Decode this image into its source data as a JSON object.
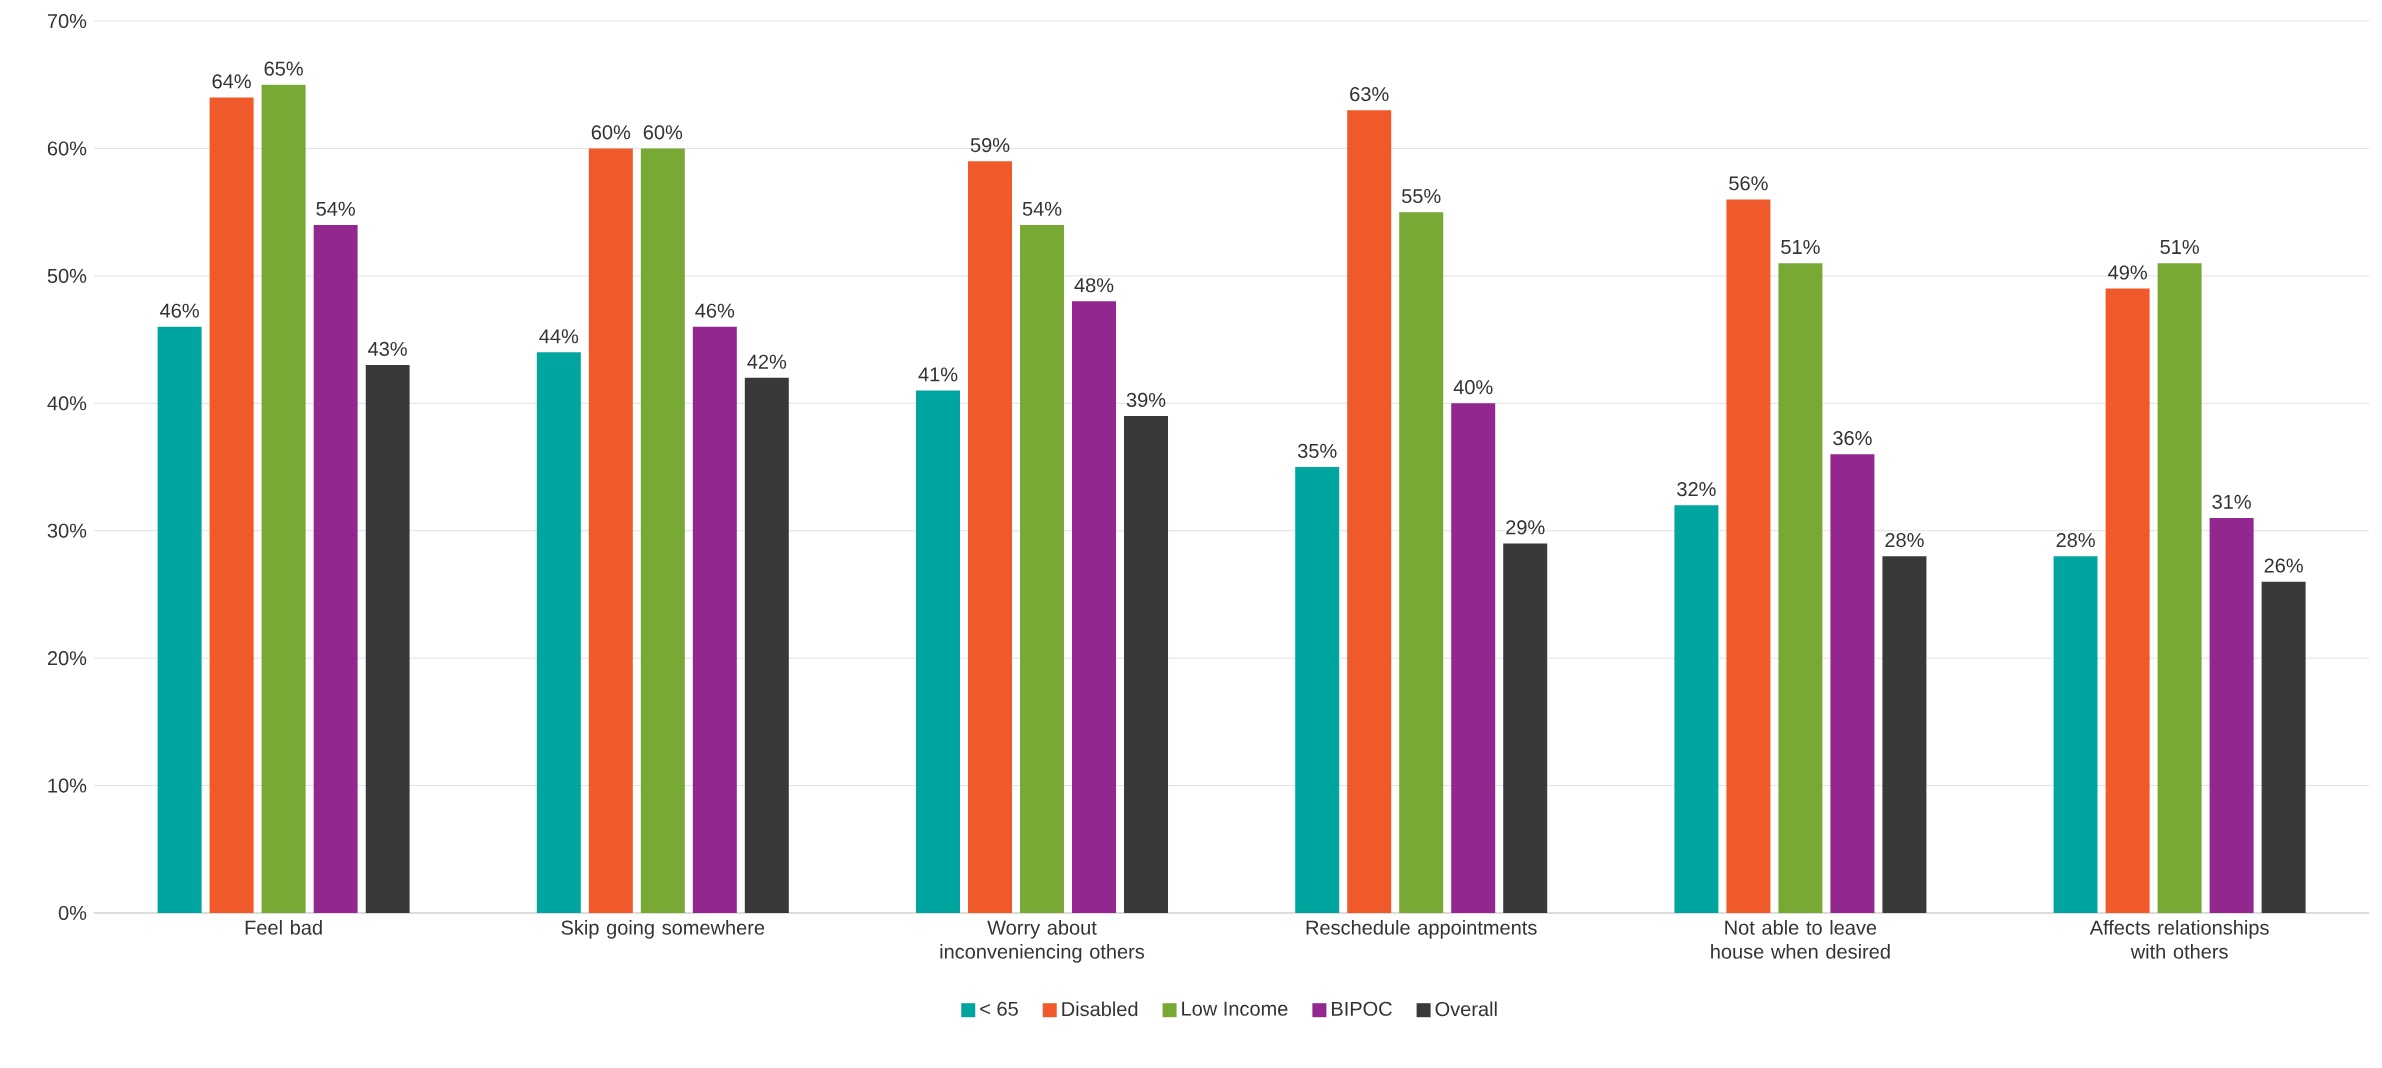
{
  "chart_data": {
    "type": "bar",
    "categories": [
      "Feel bad",
      "Skip going somewhere",
      "Worry about inconveniencing others",
      "Reschedule appointments",
      "Not able to leave house when desired",
      "Affects relationships with others"
    ],
    "series": [
      {
        "name": "< 65",
        "color": "#00a59f",
        "values": [
          46,
          44,
          41,
          35,
          32,
          28
        ],
        "value_labels": [
          "46%",
          "44%",
          "41%",
          "35%",
          "32%",
          "28%"
        ]
      },
      {
        "name": "Disabled",
        "color": "#f05a2a",
        "values": [
          64,
          60,
          59,
          63,
          56,
          49
        ],
        "value_labels": [
          "64%",
          "60%",
          "59%",
          "63%",
          "56%",
          "49%"
        ]
      },
      {
        "name": "Low Income",
        "color": "#77a934",
        "values": [
          65,
          60,
          54,
          55,
          51,
          51
        ],
        "value_labels": [
          "65%",
          "60%",
          "54%",
          "55%",
          "51%",
          "51%"
        ]
      },
      {
        "name": "BIPOC",
        "color": "#92278f",
        "values": [
          54,
          46,
          48,
          40,
          36,
          31
        ],
        "value_labels": [
          "54%",
          "46%",
          "48%",
          "40%",
          "36%",
          "31%"
        ]
      },
      {
        "name": "Overall",
        "color": "#393939",
        "values": [
          43,
          42,
          39,
          29,
          28,
          26
        ],
        "value_labels": [
          "43%",
          "42%",
          "39%",
          "29%",
          "28%",
          "26%"
        ]
      }
    ],
    "ylim": [
      0,
      70
    ],
    "yticks": [
      {
        "value": 0,
        "label": "0%"
      },
      {
        "value": 10,
        "label": "10%"
      },
      {
        "value": 20,
        "label": "20%"
      },
      {
        "value": 30,
        "label": "30%"
      },
      {
        "value": 40,
        "label": "40%"
      },
      {
        "value": 50,
        "label": "50%"
      },
      {
        "value": 60,
        "label": "60%"
      },
      {
        "value": 70,
        "label": "70%"
      }
    ],
    "grid": "y",
    "legend": "bottom"
  }
}
